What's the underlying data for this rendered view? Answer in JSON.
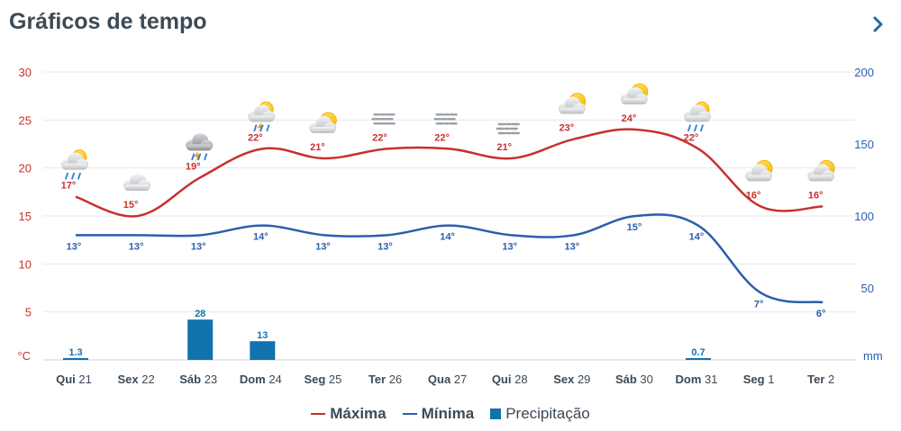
{
  "header": {
    "title": "Gráficos de tempo"
  },
  "colors": {
    "max": "#c8302f",
    "min": "#2a5fad",
    "precip": "#1173ae",
    "left_axis": "#c8302f",
    "right_axis": "#2a5fad"
  },
  "chart_data": {
    "type": "line",
    "categories": [
      "Qui 21",
      "Sex 22",
      "Sáb 23",
      "Dom 24",
      "Seg 25",
      "Ter 26",
      "Qua 27",
      "Qui 28",
      "Sex 29",
      "Sáb 30",
      "Dom 31",
      "Seg 1",
      "Ter 2"
    ],
    "y_left": {
      "unit": "°C",
      "ticks": [
        5,
        10,
        15,
        20,
        25,
        30
      ],
      "ylim": [
        0,
        30
      ]
    },
    "y_right": {
      "unit": "mm",
      "ticks": [
        50,
        100,
        150,
        200
      ],
      "ylim": [
        0,
        200
      ]
    },
    "series": [
      {
        "name": "Máxima",
        "values": [
          17,
          15,
          19,
          22,
          21,
          22,
          22,
          21,
          23,
          24,
          22,
          16,
          16
        ],
        "labels": [
          "17°",
          "15°",
          "19°",
          "22°",
          "21°",
          "22°",
          "22°",
          "21°",
          "23°",
          "24°",
          "22°",
          "16°",
          "16°"
        ]
      },
      {
        "name": "Mínima",
        "values": [
          13,
          13,
          13,
          14,
          13,
          13,
          14,
          13,
          13,
          15,
          14,
          7,
          6
        ],
        "labels": [
          "13°",
          "13°",
          "13°",
          "14°",
          "13°",
          "13°",
          "14°",
          "13°",
          "13°",
          "15°",
          "14°",
          "7°",
          "6°"
        ]
      },
      {
        "name": "Precipitação",
        "type": "bar",
        "values": [
          1.3,
          null,
          28,
          13,
          null,
          null,
          null,
          null,
          null,
          null,
          0.7,
          null,
          null
        ],
        "labels": [
          "1.3",
          "",
          "28",
          "13",
          "",
          "",
          "",
          "",
          "",
          "",
          "0.7",
          "",
          ""
        ]
      }
    ],
    "icons": [
      "sun-cloud-rain-icon",
      "cloud-icon",
      "thunderstorm-icon",
      "sun-thunderstorm-icon",
      "sun-cloud-icon",
      "fog-icon",
      "fog-icon",
      "fog-icon",
      "sun-cloud-icon",
      "sun-cloud-icon",
      "sun-cloud-rain-icon",
      "sun-cloud-icon",
      "sun-cloud-icon"
    ],
    "grid": true,
    "legend_position": "bottom-center"
  },
  "legend": [
    {
      "name": "max",
      "label": "Máxima"
    },
    {
      "name": "min",
      "label": "Mínima"
    },
    {
      "name": "precip",
      "label": "Precipitação"
    }
  ]
}
